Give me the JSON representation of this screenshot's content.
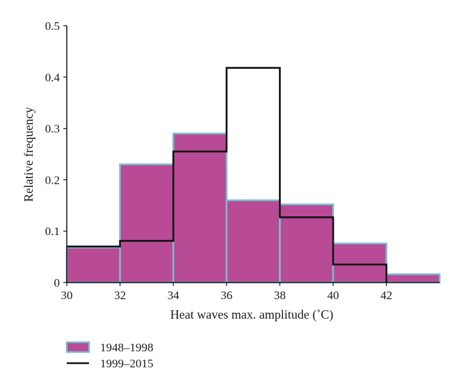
{
  "chart_data": {
    "type": "bar",
    "xlabel": "Heat waves max. amplitude (˚C)",
    "ylabel": "Relative frequency",
    "xlim": [
      30,
      44
    ],
    "ylim": [
      0,
      0.5
    ],
    "x_ticks": [
      "30",
      "32",
      "34",
      "36",
      "38",
      "40",
      "42"
    ],
    "y_ticks": [
      "0",
      "0.1",
      "0.2",
      "0.3",
      "0.4",
      "0.5"
    ],
    "bin_edges": [
      30,
      32,
      34,
      36,
      38,
      40,
      42,
      44
    ],
    "series": [
      {
        "name": "1948–1998",
        "style": "filled bars",
        "values": [
          0.068,
          0.23,
          0.29,
          0.16,
          0.152,
          0.076,
          0.016
        ]
      },
      {
        "name": "1999–2015",
        "style": "step outline",
        "x_end": 42,
        "values": [
          0.07,
          0.081,
          0.255,
          0.418,
          0.127,
          0.035
        ]
      }
    ],
    "legend_position": "bottom-left",
    "colors": {
      "bar_fill": "#b94a95",
      "bar_edge": "#78bcd0",
      "step_line": "#111111",
      "axis": "#111111"
    }
  }
}
